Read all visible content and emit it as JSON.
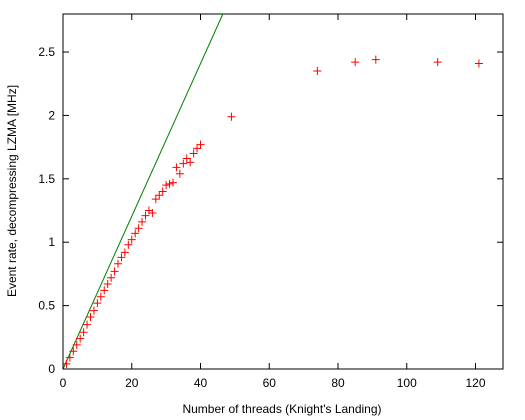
{
  "chart_data": {
    "type": "scatter",
    "title": "",
    "xlabel": "Number of threads (Knight's Landing)",
    "ylabel": "Event rate, decompressing LZMA [MHz]",
    "xlim": [
      0,
      128
    ],
    "ylim": [
      0,
      2.8
    ],
    "x_ticks": [
      0,
      20,
      40,
      60,
      80,
      100,
      120
    ],
    "y_ticks": [
      0,
      0.5,
      1,
      1.5,
      2,
      2.5
    ],
    "x_tick_labels": [
      "0",
      "20",
      "40",
      "60",
      "80",
      "100",
      "120"
    ],
    "y_tick_labels": [
      "0",
      "0.5",
      "1",
      "1.5",
      "2",
      "2.5"
    ],
    "grid": false,
    "series": [
      {
        "kind": "points",
        "marker": "+",
        "color": "#ff0000",
        "x": [
          1,
          2,
          3,
          4,
          5,
          6,
          7,
          8,
          9,
          10,
          11,
          12,
          13,
          14,
          15,
          16,
          17,
          18,
          19,
          20,
          21,
          22,
          23,
          24,
          25,
          26,
          27,
          28,
          29,
          30,
          31,
          32,
          33,
          34,
          35,
          36,
          37,
          38,
          39,
          40,
          49,
          74,
          85,
          91,
          109,
          121
        ],
        "y": [
          0.04,
          0.09,
          0.14,
          0.19,
          0.24,
          0.29,
          0.35,
          0.41,
          0.46,
          0.52,
          0.57,
          0.62,
          0.67,
          0.72,
          0.77,
          0.83,
          0.88,
          0.92,
          0.98,
          1.02,
          1.07,
          1.11,
          1.16,
          1.21,
          1.25,
          1.23,
          1.34,
          1.37,
          1.4,
          1.45,
          1.46,
          1.47,
          1.59,
          1.54,
          1.62,
          1.66,
          1.63,
          1.7,
          1.74,
          1.77,
          1.99,
          2.35,
          2.42,
          2.44,
          2.42,
          2.41
        ]
      },
      {
        "kind": "line",
        "color": "#008000",
        "x": [
          0,
          46.5
        ],
        "y": [
          0,
          2.8
        ]
      }
    ]
  }
}
